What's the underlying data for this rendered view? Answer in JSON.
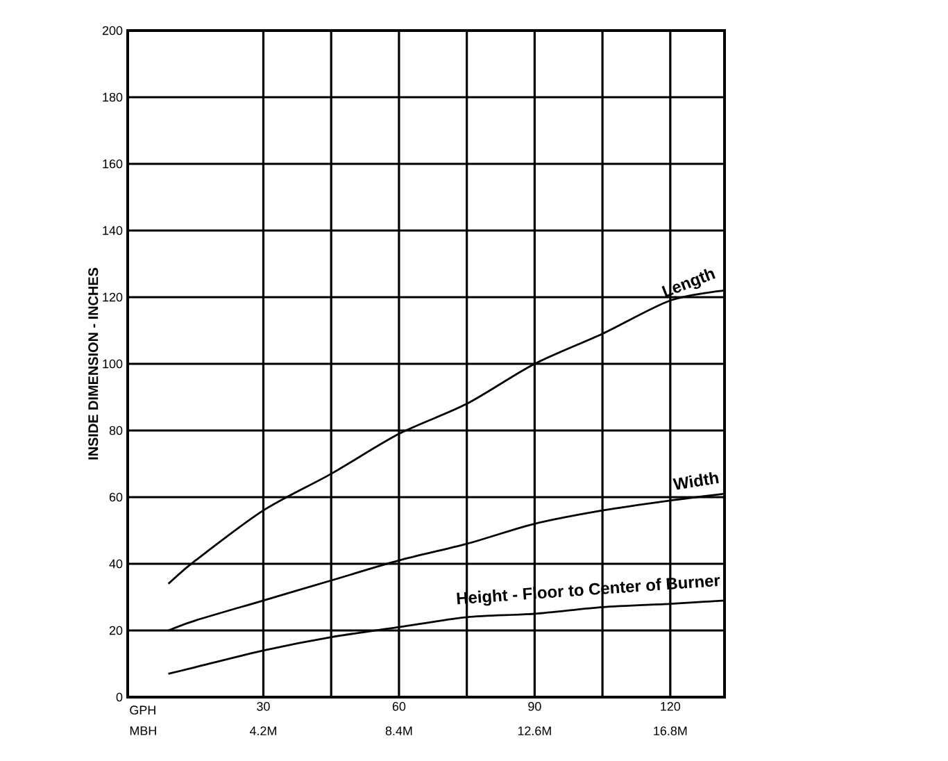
{
  "chart_data": {
    "type": "line",
    "ylabel": "INSIDE DIMENSION - INCHES",
    "x": [
      9,
      15,
      30,
      45,
      60,
      75,
      90,
      105,
      120,
      132
    ],
    "series": [
      {
        "name": "Length",
        "color": "#000000",
        "values": [
          34,
          41,
          56,
          67,
          79,
          88,
          100,
          109,
          119,
          122
        ]
      },
      {
        "name": "Width",
        "color": "#000000",
        "values": [
          20,
          23,
          29,
          35,
          41,
          46,
          52,
          56,
          59,
          61
        ]
      },
      {
        "name": "Height - Floor to Center of Burner",
        "color": "#000000",
        "values": [
          7,
          9,
          14,
          18,
          21,
          24,
          25,
          27,
          28,
          29
        ]
      }
    ],
    "xlim": [
      0,
      132
    ],
    "xlabel": "GPH",
    "xticks": [
      30,
      60,
      90,
      120
    ],
    "x2label": "MBH",
    "x2lim": [
      0,
      18.48
    ],
    "x2ticks": [
      {
        "value": 4.2,
        "label": "4.2M"
      },
      {
        "value": 8.4,
        "label": "8.4M"
      },
      {
        "value": 12.6,
        "label": "12.6M"
      },
      {
        "value": 16.8,
        "label": "16.8M"
      }
    ],
    "ylim": [
      0,
      200
    ],
    "yticks": [
      0,
      20,
      40,
      60,
      80,
      100,
      120,
      140,
      160,
      180,
      200
    ],
    "grid": true,
    "marker": "none",
    "line_style": "solid"
  }
}
